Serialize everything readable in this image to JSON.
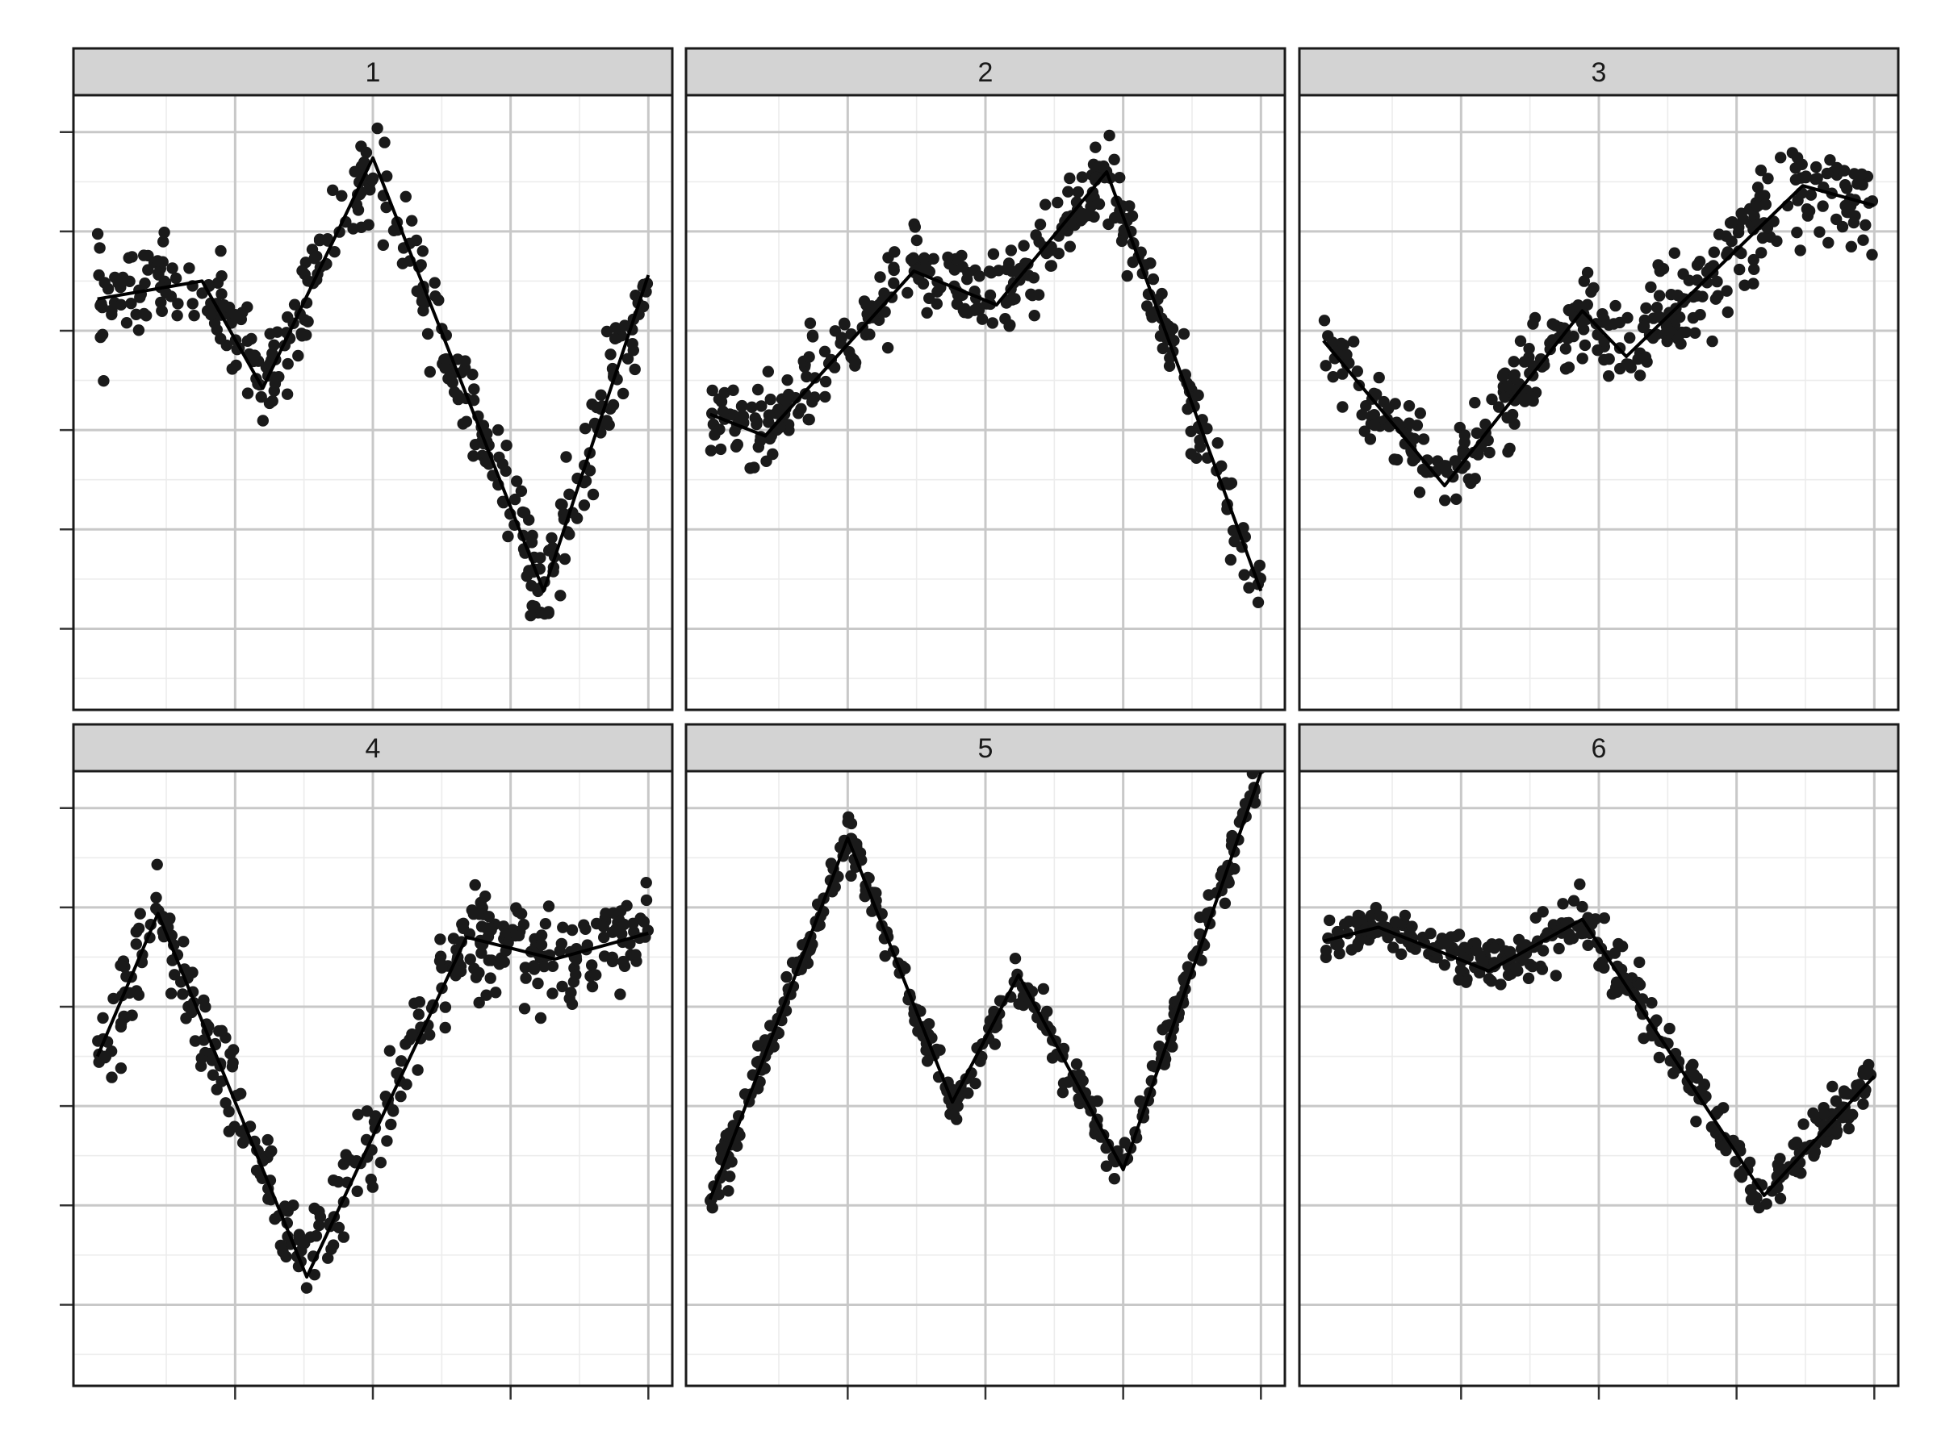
{
  "chart_data": {
    "type": "scatter",
    "layout": "facet-grid",
    "facet_rows": 2,
    "facet_cols": 3,
    "xlim": [
      0,
      1
    ],
    "ylim": [
      -0.3,
      2.5
    ],
    "grid": true,
    "legend": "none",
    "title": "",
    "xlabel": "",
    "ylabel": "",
    "colors": {
      "point": "#1a1a1a",
      "line": "#000000",
      "strip_fill": "#d3d3d3",
      "grid_major": "#c8c8c8",
      "grid_minor": "#ececec",
      "panel_border": "#1a1a1a"
    },
    "facets": [
      {
        "label": "1",
        "trend": [
          [
            0.0,
            1.66
          ],
          [
            0.19,
            1.75
          ],
          [
            0.3,
            1.21
          ],
          [
            0.5,
            2.37
          ],
          [
            0.81,
            0.19
          ],
          [
            1.0,
            1.78
          ]
        ],
        "noise": 0.12
      },
      {
        "label": "2",
        "trend": [
          [
            0.0,
            1.08
          ],
          [
            0.1,
            0.97
          ],
          [
            0.37,
            1.8
          ],
          [
            0.52,
            1.63
          ],
          [
            0.72,
            2.3
          ],
          [
            1.0,
            0.19
          ]
        ],
        "noise": 0.1
      },
      {
        "label": "3",
        "trend": [
          [
            0.0,
            1.45
          ],
          [
            0.22,
            0.72
          ],
          [
            0.47,
            1.6
          ],
          [
            0.55,
            1.37
          ],
          [
            0.87,
            2.23
          ],
          [
            1.0,
            2.13
          ]
        ],
        "noise": 0.12
      },
      {
        "label": "4",
        "trend": [
          [
            0.0,
            1.25
          ],
          [
            0.11,
            1.97
          ],
          [
            0.38,
            0.14
          ],
          [
            0.67,
            1.85
          ],
          [
            0.83,
            1.74
          ],
          [
            1.0,
            1.87
          ]
        ],
        "noise": 0.12
      },
      {
        "label": "5",
        "trend": [
          [
            0.0,
            0.53
          ],
          [
            0.25,
            2.35
          ],
          [
            0.44,
            1.02
          ],
          [
            0.56,
            1.66
          ],
          [
            0.75,
            0.68
          ],
          [
            1.0,
            2.68
          ]
        ],
        "noise": 0.06
      },
      {
        "label": "6",
        "trend": [
          [
            0.0,
            1.83
          ],
          [
            0.1,
            1.9
          ],
          [
            0.3,
            1.68
          ],
          [
            0.47,
            1.94
          ],
          [
            0.8,
            0.55
          ],
          [
            1.0,
            1.15
          ]
        ],
        "noise": 0.07
      }
    ]
  }
}
